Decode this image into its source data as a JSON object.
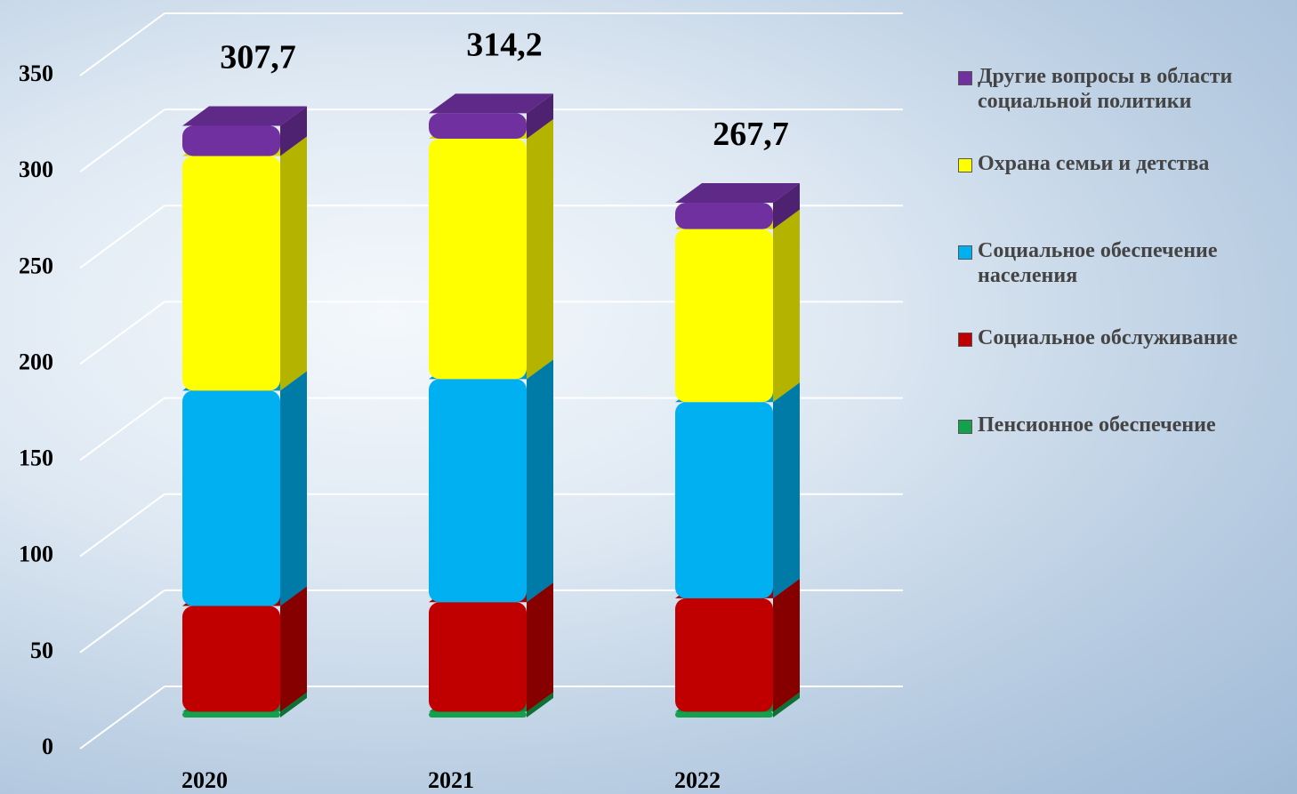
{
  "chart_data": {
    "type": "bar3d_stacked",
    "categories": [
      "2020",
      "2021",
      "2022"
    ],
    "series": [
      {
        "name": "Пенсионное обеспечение",
        "color": "#14a04c",
        "values": [
          3,
          3,
          3
        ]
      },
      {
        "name": "Социальное обслуживание",
        "color": "#c00000",
        "values": [
          55,
          57,
          59
        ]
      },
      {
        "name": "Социальное обеспечение населения",
        "color": "#00b0f0",
        "values": [
          112,
          116,
          102
        ]
      },
      {
        "name": "Охрана семьи и детства",
        "color": "#ffff00",
        "values": [
          122,
          125,
          90
        ]
      },
      {
        "name": "Другие вопросы в области социальной политики",
        "color": "#7030a0",
        "values": [
          15.7,
          13.2,
          13.7
        ]
      }
    ],
    "totals": [
      307.7,
      314.2,
      267.7
    ],
    "total_labels": [
      "307,7",
      "314,2",
      "267,7"
    ],
    "ylim": [
      0,
      350
    ],
    "yticks": [
      0,
      50,
      100,
      150,
      200,
      250,
      300,
      350
    ],
    "grid": true
  }
}
